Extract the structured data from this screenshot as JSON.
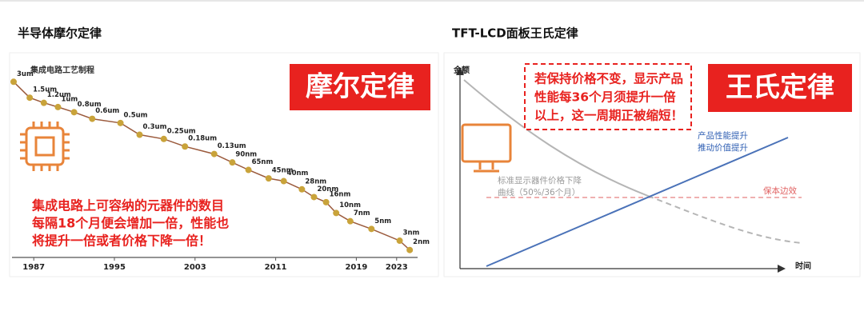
{
  "chart_data": [
    {
      "type": "line",
      "title": "半导体摩尔定律",
      "y_label": "集成电路工艺制程",
      "badge": "摩尔定律",
      "annotation": [
        "集成电路上可容纳的元器件的数目",
        "每隔18个月便会增加一倍，性能也",
        "将提升一倍或者价格下降一倍！"
      ],
      "x": [
        1985,
        1986.6,
        1988,
        1989.4,
        1991,
        1992.8,
        1995.6,
        1997.5,
        1999.9,
        2002,
        2004.9,
        2006.7,
        2008.3,
        2010.3,
        2011.8,
        2013.6,
        2014.8,
        2016,
        2017,
        2018.4,
        2020.5,
        2023.3,
        2024.3
      ],
      "values": [
        3000,
        1500,
        1200,
        1000,
        800,
        600,
        500,
        300,
        250,
        180,
        130,
        90,
        65,
        45,
        40,
        28,
        20,
        16,
        10,
        7,
        5,
        3,
        2
      ],
      "value_labels": [
        "3um",
        "1.5um",
        "1.2um",
        "1um",
        "0.8um",
        "0.6um",
        "0.5um",
        "0.3um",
        "0.25um",
        "0.18um",
        "0.13um",
        "90nm",
        "65nm",
        "45nm",
        "40nm",
        "28nm",
        "20nm",
        "16nm",
        "10nm",
        "7nm",
        "5nm",
        "3nm",
        "2nm"
      ],
      "color": "#9b5a3c",
      "marker_color": "#c9a33a",
      "xlim": [
        1985,
        2025
      ],
      "xticks": [
        1987,
        1995,
        2003,
        2011,
        2019,
        2023
      ],
      "ylim": [
        1.5,
        4000
      ],
      "log_y": true
    },
    {
      "type": "schematic",
      "title": "TFT-LCD面板王氏定律",
      "y_label": "金额",
      "x_label": "时间",
      "badge": "王氏定律",
      "annotation": [
        "若保持价格不变，显示产品",
        "性能每36个月须提升一倍",
        "以上，这一周期正被缩短！"
      ],
      "curve_labels": [
        {
          "lines": [
            "产品性能提升",
            "推动价值提升"
          ],
          "color": "#2f5fb3"
        },
        {
          "lines": [
            "标准显示器件价格下降",
            "曲线（50%/36个月）"
          ],
          "color": "#9a9a9a"
        },
        {
          "lines": [
            "保本边效"
          ],
          "color": "#e06060"
        }
      ]
    }
  ]
}
